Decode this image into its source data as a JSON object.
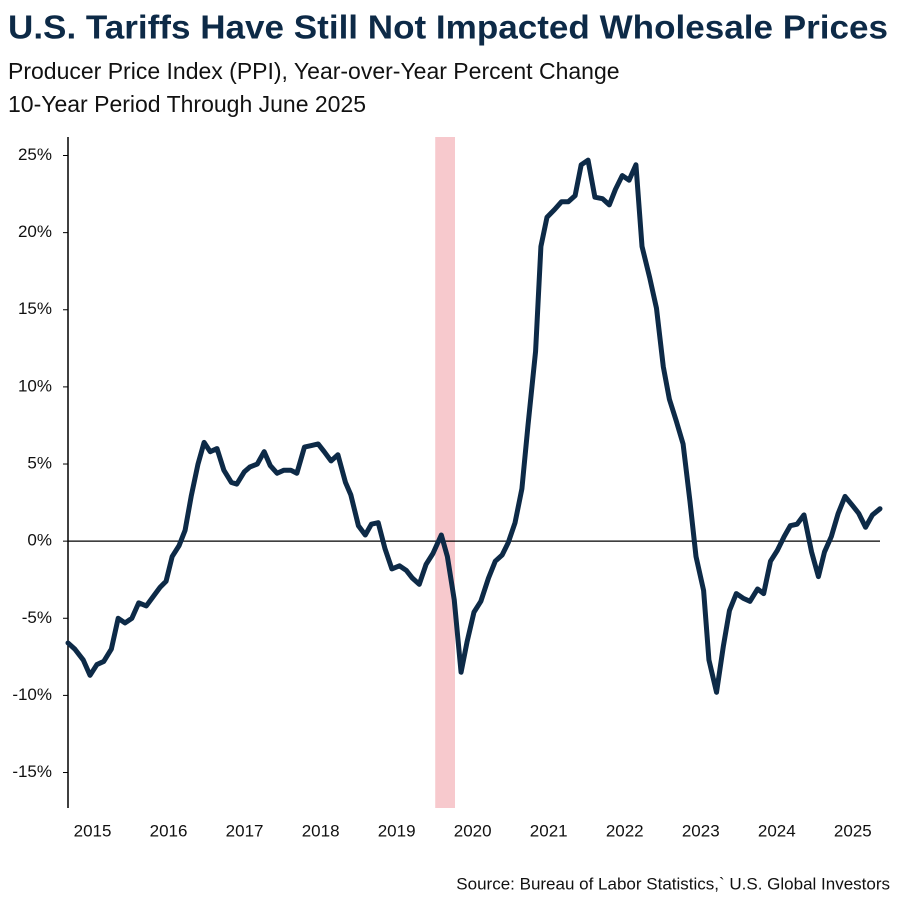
{
  "chart_data": {
    "type": "line",
    "title": "U.S. Tariffs Have Still Not Impacted Wholesale Prices",
    "subtitle": [
      "Producer Price Index (PPI), Year-over-Year Percent Change",
      "10-Year Period Through June 2025"
    ],
    "source": "Source: Bureau of Labor Statistics,` U.S. Global Investors",
    "xlim": [
      2014.73,
      2025.41
    ],
    "xticks": [
      2015,
      2016,
      2017,
      2018,
      2019,
      2020,
      2021,
      2022,
      2023,
      2024,
      2025
    ],
    "ylim": [
      -17.3,
      26.2
    ],
    "yticks": [
      {
        "value": 25,
        "label": "25%"
      },
      {
        "value": 20,
        "label": "20%"
      },
      {
        "value": 15,
        "label": "15%"
      },
      {
        "value": 10,
        "label": "10%"
      },
      {
        "value": 5,
        "label": "5%"
      },
      {
        "value": 0,
        "label": "0%"
      },
      {
        "value": -5,
        "label": "-5%"
      },
      {
        "value": -10,
        "label": "-10%"
      },
      {
        "value": -15,
        "label": "-15%"
      }
    ],
    "highlight_range": [
      2019.56,
      2019.82
    ],
    "highlight_color": "#f7c9cd",
    "x": [
      2014.73,
      2014.82,
      2014.93,
      2015.02,
      2015.11,
      2015.2,
      2015.3,
      2015.39,
      2015.48,
      2015.57,
      2015.66,
      2015.76,
      2015.85,
      2015.94,
      2016.02,
      2016.1,
      2016.19,
      2016.27,
      2016.35,
      2016.44,
      2016.52,
      2016.6,
      2016.69,
      2016.78,
      2016.88,
      2016.95,
      2017.05,
      2017.12,
      2017.22,
      2017.31,
      2017.39,
      2017.48,
      2017.57,
      2017.66,
      2017.74,
      2017.84,
      2017.93,
      2018.02,
      2018.1,
      2018.19,
      2018.28,
      2018.38,
      2018.45,
      2018.55,
      2018.64,
      2018.72,
      2018.81,
      2018.9,
      2018.99,
      2019.09,
      2019.18,
      2019.26,
      2019.35,
      2019.44,
      2019.53,
      2019.64,
      2019.72,
      2019.81,
      2019.9,
      2019.98,
      2020.07,
      2020.16,
      2020.26,
      2020.35,
      2020.44,
      2020.52,
      2020.61,
      2020.7,
      2020.78,
      2020.88,
      2020.95,
      2021.03,
      2021.13,
      2021.22,
      2021.31,
      2021.4,
      2021.48,
      2021.57,
      2021.66,
      2021.76,
      2021.85,
      2021.93,
      2022.02,
      2022.11,
      2022.2,
      2022.28,
      2022.38,
      2022.47,
      2022.56,
      2022.64,
      2022.73,
      2022.82,
      2022.91,
      2022.99,
      2023.09,
      2023.16,
      2023.26,
      2023.35,
      2023.43,
      2023.52,
      2023.61,
      2023.7,
      2023.8,
      2023.88,
      2023.97,
      2024.06,
      2024.15,
      2024.23,
      2024.32,
      2024.41,
      2024.51,
      2024.6,
      2024.68,
      2024.77,
      2024.86,
      2024.95,
      2025.05,
      2025.13,
      2025.22,
      2025.31,
      2025.41
    ],
    "series": [
      {
        "color": "#0d2a47",
        "values": [
          -6.6,
          -7.0,
          -7.7,
          -8.7,
          -8.0,
          -7.8,
          -7.0,
          -5.0,
          -5.3,
          -5.0,
          -4.0,
          -4.2,
          -3.6,
          -3.0,
          -2.6,
          -1.0,
          -0.3,
          0.7,
          2.9,
          5.0,
          6.4,
          5.8,
          6.0,
          4.6,
          3.8,
          3.7,
          4.5,
          4.8,
          5.0,
          5.8,
          4.9,
          4.4,
          4.6,
          4.6,
          4.4,
          6.1,
          6.2,
          6.3,
          5.8,
          5.2,
          5.6,
          3.8,
          3.0,
          1.0,
          0.4,
          1.1,
          1.2,
          -0.5,
          -1.8,
          -1.6,
          -1.9,
          -2.4,
          -2.8,
          -1.5,
          -0.8,
          0.4,
          -1.0,
          -3.8,
          -8.5,
          -6.5,
          -4.6,
          -3.9,
          -2.4,
          -1.3,
          -0.9,
          -0.1,
          1.2,
          3.4,
          7.5,
          12.3,
          19.1,
          21.0,
          21.5,
          22.0,
          22.0,
          22.4,
          24.4,
          24.7,
          22.3,
          22.2,
          21.8,
          22.8,
          23.7,
          23.4,
          24.4,
          19.1,
          17.1,
          15.1,
          11.3,
          9.2,
          7.8,
          6.3,
          2.6,
          -1.0,
          -3.2,
          -7.7,
          -9.8,
          -6.8,
          -4.5,
          -3.4,
          -3.7,
          -3.9,
          -3.1,
          -3.4,
          -1.3,
          -0.6,
          0.3,
          1.0,
          1.1,
          1.7,
          -0.7,
          -2.3,
          -0.7,
          0.3,
          1.8,
          2.9,
          2.3,
          1.8,
          0.9,
          1.7,
          2.1
        ]
      }
    ]
  }
}
